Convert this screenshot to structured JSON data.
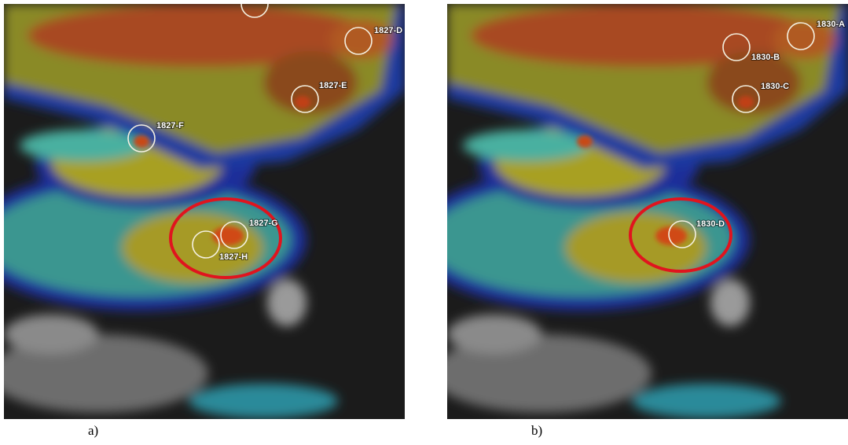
{
  "panels": [
    {
      "caption": "a)",
      "labels": [
        "1827-D",
        "1827-E",
        "1827-F",
        "1827-G",
        "1827-H"
      ]
    },
    {
      "caption": "b)",
      "labels": [
        "1830-A",
        "1830-B",
        "1830-C",
        "1830-D"
      ]
    }
  ]
}
